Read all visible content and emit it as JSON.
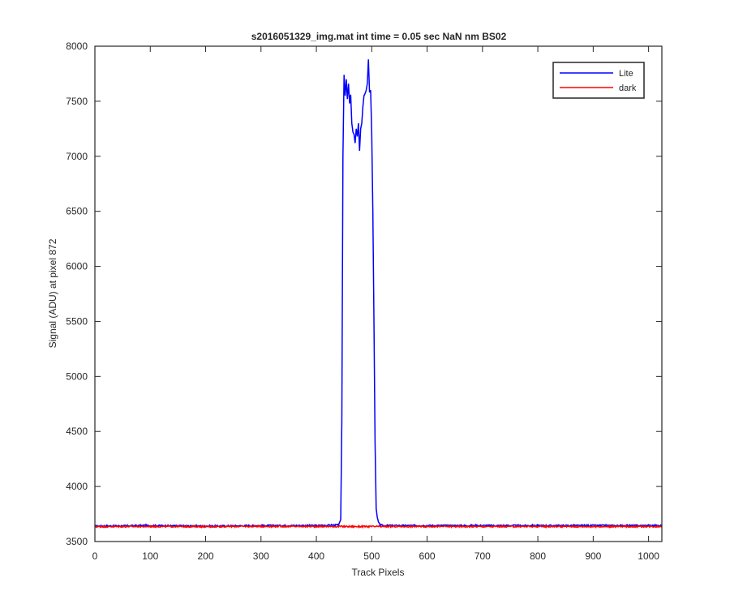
{
  "chart_data": {
    "type": "line",
    "title": "s2016051329_img.mat int time = 0.05 sec  NaN nm BS02",
    "xlabel": "Track Pixels",
    "ylabel": "Signal (ADU) at pixel 872",
    "xlim": [
      0,
      1024
    ],
    "ylim": [
      3500,
      8000
    ],
    "xticks": [
      0,
      100,
      200,
      300,
      400,
      500,
      600,
      700,
      800,
      900,
      1000
    ],
    "yticks": [
      3500,
      4000,
      4500,
      5000,
      5500,
      6000,
      6500,
      7000,
      7500,
      8000
    ],
    "grid": false,
    "legend_position": "top-right",
    "series": [
      {
        "name": "Lite",
        "color": "#0000ff",
        "x": [
          0,
          100,
          200,
          300,
          400,
          440,
          444,
          446,
          448,
          450,
          452,
          454,
          456,
          458,
          460,
          462,
          464,
          466,
          468,
          470,
          472,
          474,
          476,
          478,
          480,
          482,
          484,
          486,
          488,
          490,
          492,
          494,
          496,
          498,
          500,
          502,
          504,
          506,
          508,
          510,
          512,
          514,
          516,
          520,
          530,
          600,
          700,
          800,
          900,
          1024
        ],
        "y": [
          3640,
          3645,
          3640,
          3645,
          3645,
          3650,
          3700,
          4600,
          7000,
          7740,
          7550,
          7700,
          7520,
          7660,
          7480,
          7560,
          7300,
          7220,
          7200,
          7120,
          7250,
          7180,
          7300,
          7050,
          7250,
          7300,
          7450,
          7550,
          7570,
          7600,
          7660,
          7880,
          7580,
          7600,
          7200,
          6500,
          5500,
          4400,
          3800,
          3720,
          3680,
          3660,
          3650,
          3645,
          3645,
          3645,
          3645,
          3645,
          3645,
          3645
        ]
      },
      {
        "name": "dark",
        "color": "#ff0000",
        "x": [
          0,
          100,
          200,
          300,
          400,
          500,
          600,
          700,
          800,
          900,
          1024
        ],
        "y": [
          3635,
          3637,
          3636,
          3638,
          3637,
          3636,
          3637,
          3636,
          3637,
          3636,
          3637
        ]
      }
    ]
  }
}
